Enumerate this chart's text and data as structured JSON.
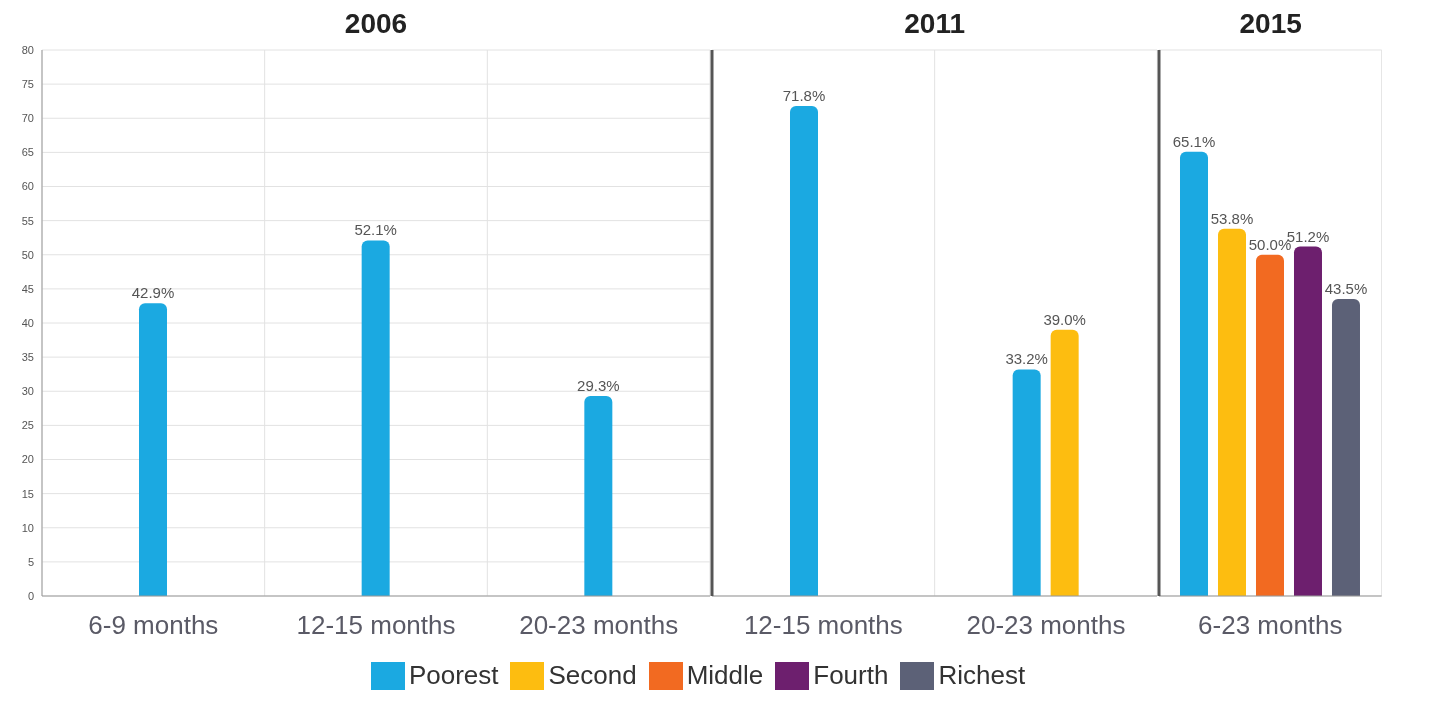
{
  "chart_data": [
    {
      "type": "bar",
      "title": "2006",
      "categories": [
        "6-9 months",
        "12-15 months",
        "20-23 months"
      ],
      "ylim": [
        0,
        80
      ],
      "yticks": [
        0,
        5,
        10,
        15,
        20,
        25,
        30,
        35,
        40,
        45,
        50,
        55,
        60,
        65,
        70,
        75,
        80
      ],
      "grid": true,
      "series": [
        {
          "color": "#1ba9e1",
          "values": [
            42.9,
            52.1,
            29.3
          ],
          "value_labels": [
            "42.9%",
            "52.1%",
            "29.3%"
          ]
        }
      ]
    },
    {
      "type": "bar",
      "title": "2011",
      "categories": [
        "12-15 months",
        "20-23 months"
      ],
      "ylim": [
        0,
        80
      ],
      "yticks": [
        0,
        5,
        10,
        15,
        20,
        25,
        30,
        35,
        40,
        45,
        50,
        55,
        60,
        65,
        70,
        75,
        80
      ],
      "grid": true,
      "tick_labels": "x",
      "series": [
        {
          "color": "#1ba9e1",
          "values": [
            71.8,
            33.2
          ],
          "value_labels": [
            "71.8%",
            "33.2%"
          ]
        },
        {
          "color": "#fdbd10",
          "values": [
            null,
            39.0
          ],
          "value_labels": [
            null,
            "39.0%"
          ]
        }
      ]
    },
    {
      "type": "bar",
      "title": "2015",
      "categories": [
        "6-23 months"
      ],
      "ylim": [
        0,
        80
      ],
      "yticks": [
        0,
        5,
        10,
        15,
        20,
        25,
        30,
        35,
        40,
        45,
        50,
        55,
        60,
        65,
        70,
        75,
        80
      ],
      "grid": true,
      "tick_labels": "x",
      "legend": "bottom",
      "series": [
        {
          "name": "Poorest",
          "color": "#1ba9e1",
          "values": [
            65.1
          ],
          "value_labels": [
            "65.1%"
          ]
        },
        {
          "name": "Second",
          "color": "#fdbd10",
          "values": [
            53.8
          ],
          "value_labels": [
            "53.8%"
          ]
        },
        {
          "name": "Middle",
          "color": "#f26a21",
          "values": [
            50.0
          ],
          "value_labels": [
            "50.0%"
          ]
        },
        {
          "name": "Fourth",
          "color": "#6d1f6e",
          "values": [
            51.2
          ],
          "value_labels": [
            "51.2%"
          ]
        },
        {
          "name": "Richest",
          "color": "#5c6177",
          "values": [
            43.5
          ],
          "value_labels": [
            "43.5%"
          ]
        }
      ]
    }
  ]
}
